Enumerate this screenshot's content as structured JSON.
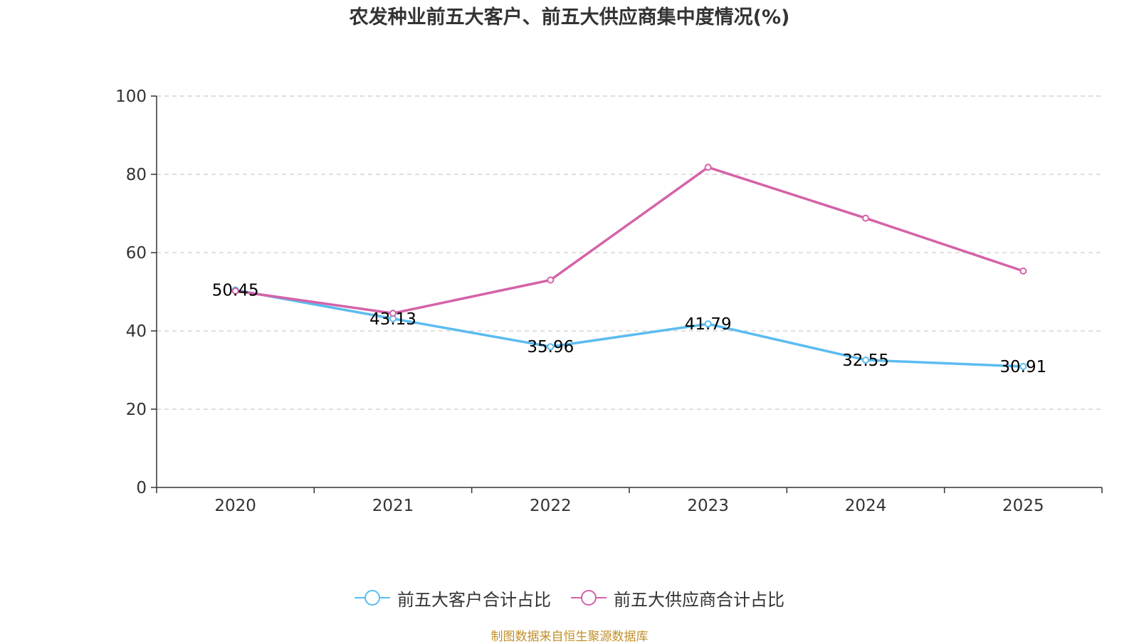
{
  "chart_data": {
    "type": "line",
    "title": "农发种业前五大客户、前五大供应商集中度情况(%)",
    "categories": [
      "2020",
      "2021",
      "2022",
      "2023",
      "2024",
      "2025"
    ],
    "ylim": [
      0,
      100
    ],
    "yticks": [
      0,
      20,
      40,
      60,
      80,
      100
    ],
    "grid": true,
    "legend_position": "bottom",
    "series": [
      {
        "name": "前五大客户合计占比",
        "color": "#5bbcf0",
        "values": [
          50.45,
          43.13,
          35.96,
          41.79,
          32.55,
          30.91
        ],
        "labels": [
          "50.45",
          "43.13",
          "35.96",
          "41.79",
          "32.55",
          "30.91"
        ]
      },
      {
        "name": "前五大供应商合计占比",
        "color": "#d462a8",
        "values": [
          50.2,
          44.5,
          53.0,
          81.8,
          68.8,
          55.3
        ]
      }
    ],
    "source": "制图数据来自恒生聚源数据库"
  }
}
